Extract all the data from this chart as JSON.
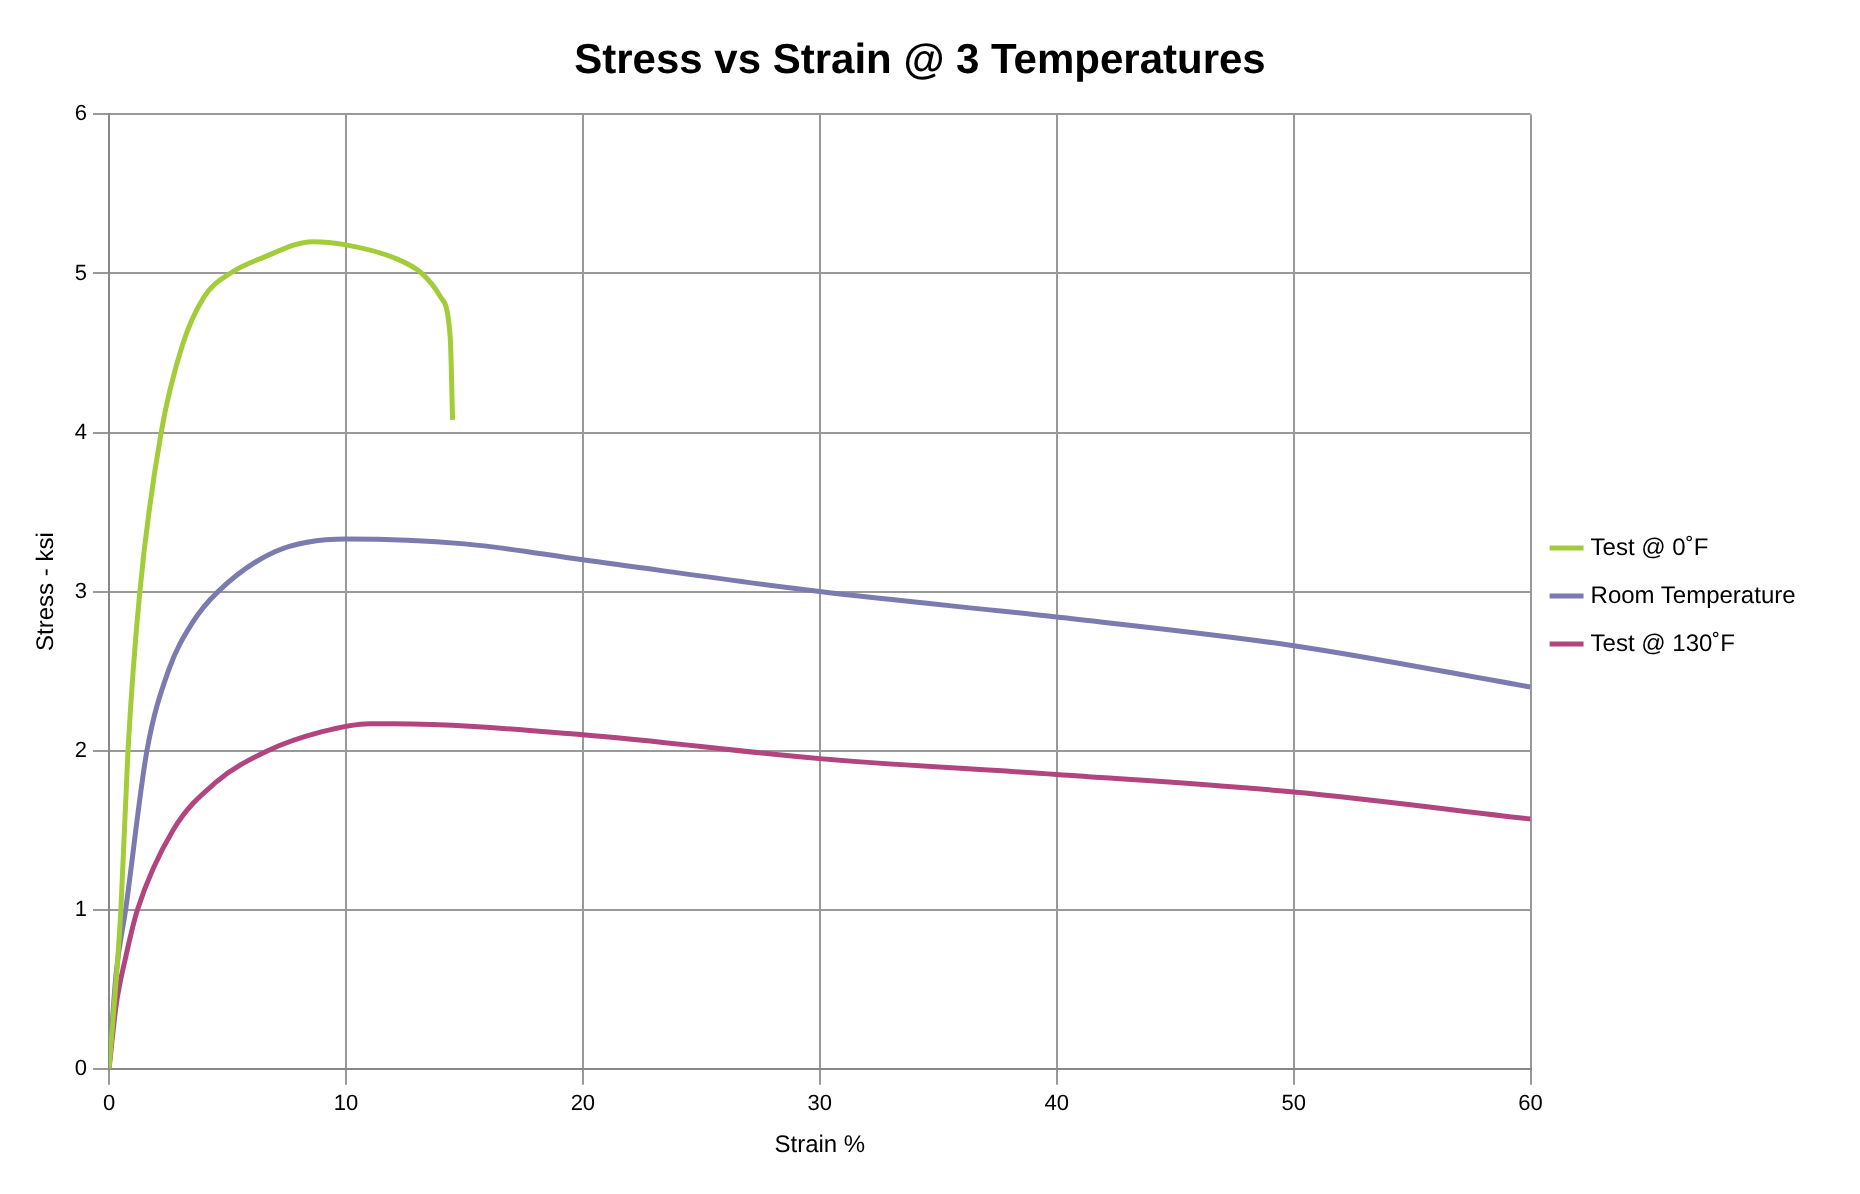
{
  "chart_data": {
    "type": "line",
    "title": "Stress vs Strain @ 3 Temperatures",
    "xlabel": "Strain %",
    "ylabel": "Stress - ksi",
    "xlim": [
      0,
      60
    ],
    "xticks": [
      0,
      10,
      20,
      30,
      40,
      50,
      60
    ],
    "ylim": [
      0,
      6
    ],
    "yticks": [
      0,
      1,
      2,
      3,
      4,
      5,
      6
    ],
    "grid": true,
    "legend": "right",
    "marker": "none",
    "line_style": "solid",
    "series": [
      {
        "name": "Test @ 0˚F",
        "color": "#a3cc3a",
        "x": [
          0,
          0.5,
          0.8,
          1.3,
          2.2,
          3.1,
          4,
          5.1,
          6.5,
          8.6,
          10,
          12,
          13.2,
          14,
          14.4,
          14.5
        ],
        "values": [
          0,
          1,
          2,
          3,
          4,
          4.55,
          4.85,
          5,
          5.1,
          5.2,
          5.18,
          5.1,
          5,
          4.85,
          4.6,
          4.08
        ]
      },
      {
        "name": "Room Temperature",
        "color": "#7b7bb0",
        "x": [
          0,
          0.3,
          0.7,
          1.6,
          2.5,
          3.5,
          4.6,
          7,
          10,
          15,
          20,
          30,
          40,
          50,
          60
        ],
        "values": [
          0,
          0.6,
          1,
          2,
          2.5,
          2.8,
          3,
          3.25,
          3.33,
          3.3,
          3.2,
          3,
          2.84,
          2.66,
          2.4
        ]
      },
      {
        "name": "Test @ 130˚F",
        "color": "#b0457f",
        "x": [
          0,
          0.3,
          0.7,
          1.2,
          2.7,
          4.5,
          6.7,
          9,
          11,
          12,
          20,
          30,
          40,
          50,
          60
        ],
        "values": [
          0,
          0.4,
          0.7,
          1,
          1.5,
          1.8,
          2,
          2.12,
          2.17,
          2.17,
          2.1,
          1.95,
          1.85,
          1.74,
          1.57
        ]
      }
    ]
  }
}
